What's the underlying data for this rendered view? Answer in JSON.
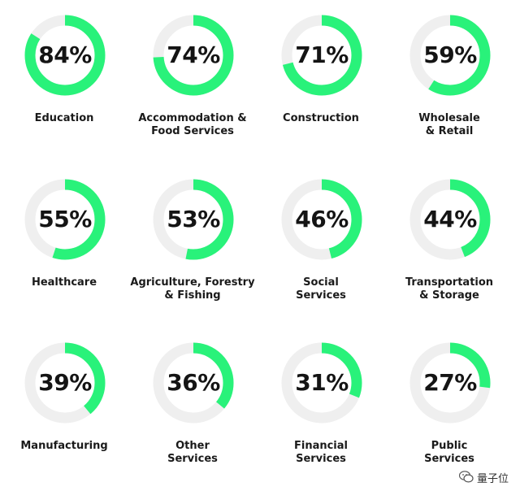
{
  "chart_data": {
    "type": "donut",
    "unit": "%",
    "colors": {
      "fill": "#29f27a",
      "track": "#efefef",
      "text": "#141414"
    },
    "items": [
      {
        "label": "Education",
        "value": 84,
        "display": "84%"
      },
      {
        "label": "Accommodation &\nFood Services",
        "value": 74,
        "display": "74%"
      },
      {
        "label": "Construction",
        "value": 71,
        "display": "71%"
      },
      {
        "label": "Wholesale\n& Retail",
        "value": 59,
        "display": "59%"
      },
      {
        "label": "Healthcare",
        "value": 55,
        "display": "55%"
      },
      {
        "label": "Agriculture, Forestry\n& Fishing",
        "value": 53,
        "display": "53%"
      },
      {
        "label": "Social\nServices",
        "value": 46,
        "display": "46%"
      },
      {
        "label": "Transportation\n& Storage",
        "value": 44,
        "display": "44%"
      },
      {
        "label": "Manufacturing",
        "value": 39,
        "display": "39%"
      },
      {
        "label": "Other\nServices",
        "value": 36,
        "display": "36%"
      },
      {
        "label": "Financial\nServices",
        "value": 31,
        "display": "31%"
      },
      {
        "label": "Public\nServices",
        "value": 27,
        "display": "27%"
      }
    ]
  },
  "watermark": {
    "text": "量子位",
    "icon": "wechat-icon"
  }
}
